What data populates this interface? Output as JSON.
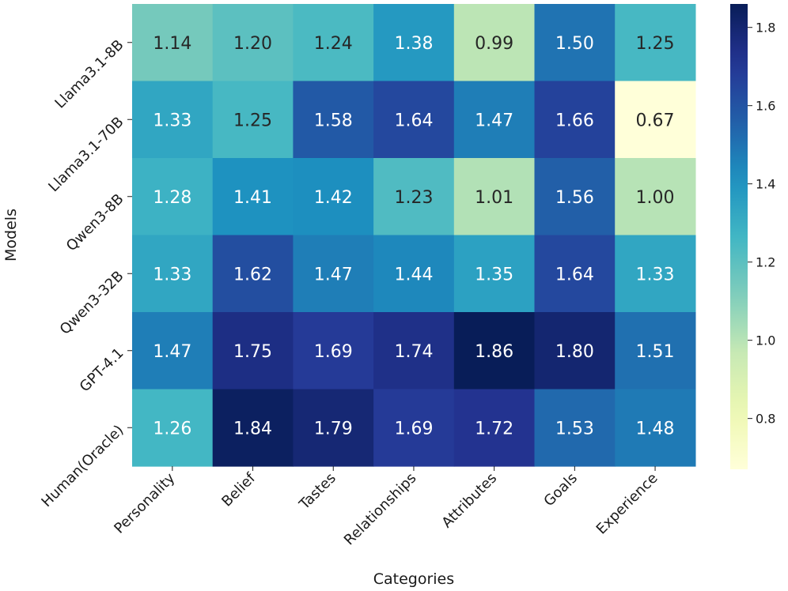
{
  "chart_data": {
    "type": "heatmap",
    "title": "",
    "xlabel": "Categories",
    "ylabel": "Models",
    "x_categories": [
      "Personality",
      "Belief",
      "Tastes",
      "Relationships",
      "Attributes",
      "Goals",
      "Experience"
    ],
    "y_categories": [
      "Llama3.1-8B",
      "Llama3.1-70B",
      "Qwen3-8B",
      "Qwen3-32B",
      "GPT-4.1",
      "Human(Oracle)"
    ],
    "values": [
      [
        1.14,
        1.2,
        1.24,
        1.38,
        0.99,
        1.5,
        1.25
      ],
      [
        1.33,
        1.25,
        1.58,
        1.64,
        1.47,
        1.66,
        0.67
      ],
      [
        1.28,
        1.41,
        1.42,
        1.23,
        1.01,
        1.56,
        1.0
      ],
      [
        1.33,
        1.62,
        1.47,
        1.44,
        1.35,
        1.64,
        1.33
      ],
      [
        1.47,
        1.75,
        1.69,
        1.74,
        1.86,
        1.8,
        1.51
      ],
      [
        1.26,
        1.84,
        1.79,
        1.69,
        1.72,
        1.53,
        1.48
      ]
    ],
    "cell_labels": [
      [
        "1.14",
        "1.20",
        "1.24",
        "1.38",
        "0.99",
        "1.50",
        "1.25"
      ],
      [
        "1.33",
        "1.25",
        "1.58",
        "1.64",
        "1.47",
        "1.66",
        "0.67"
      ],
      [
        "1.28",
        "1.41",
        "1.42",
        "1.23",
        "1.01",
        "1.56",
        "1.00"
      ],
      [
        "1.33",
        "1.62",
        "1.47",
        "1.44",
        "1.35",
        "1.64",
        "1.33"
      ],
      [
        "1.47",
        "1.75",
        "1.69",
        "1.74",
        "1.86",
        "1.80",
        "1.51"
      ],
      [
        "1.26",
        "1.84",
        "1.79",
        "1.69",
        "1.72",
        "1.53",
        "1.48"
      ]
    ],
    "colormap": "YlGnBu",
    "vmin": 0.67,
    "vmax": 1.86,
    "colorbar_ticks": [
      0.8,
      1.0,
      1.2,
      1.4,
      1.6,
      1.8
    ],
    "colorbar_tick_labels": [
      "0.8",
      "1.0",
      "1.2",
      "1.4",
      "1.6",
      "1.8"
    ],
    "grid": false
  }
}
